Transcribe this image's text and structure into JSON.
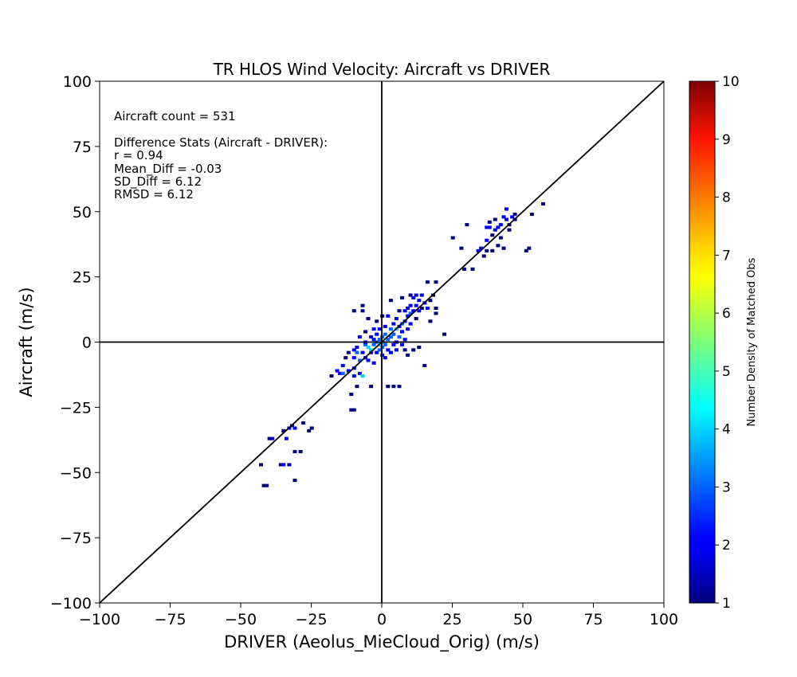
{
  "chart_data": {
    "type": "heatmap",
    "title": "TR HLOS Wind Velocity: Aircraft vs DRIVER",
    "xlabel": "DRIVER (Aeolus_MieCloud_Orig) (m/s)",
    "ylabel": "Aircraft (m/s)",
    "xlim": [
      -100,
      100
    ],
    "ylim": [
      -100,
      100
    ],
    "xticks": [
      -100,
      -75,
      -50,
      -25,
      0,
      25,
      50,
      75,
      100
    ],
    "yticks": [
      -100,
      -75,
      -50,
      -25,
      0,
      25,
      50,
      75,
      100
    ],
    "xtick_labels": [
      "−100",
      "−75",
      "−50",
      "−25",
      "0",
      "25",
      "50",
      "75",
      "100"
    ],
    "ytick_labels": [
      "−100",
      "−75",
      "−50",
      "−25",
      "0",
      "25",
      "50",
      "75",
      "100"
    ],
    "grid": false,
    "reference_lines": [
      "y = x",
      "x = 0",
      "y = 0"
    ],
    "colorbar": {
      "label": "Number Density of Matched Obs",
      "range": [
        1,
        10
      ],
      "ticks": [
        "1",
        "2",
        "3",
        "4",
        "5",
        "6",
        "7",
        "8",
        "9",
        "10"
      ],
      "colormap": "jet"
    },
    "stats_text": [
      "Aircraft count = 531",
      "",
      "Difference Stats (Aircraft - DRIVER):",
      "r = 0.94",
      "Mean_Diff = -0.03",
      "SD_Diff = 6.12",
      "RMSD = 6.12"
    ],
    "cells": [
      [
        -43,
        -47,
        1
      ],
      [
        -42,
        -55,
        1
      ],
      [
        -41,
        -55,
        1
      ],
      [
        -39,
        -37,
        2
      ],
      [
        -40,
        -37,
        1
      ],
      [
        -36,
        -47,
        1
      ],
      [
        -35,
        -47,
        2
      ],
      [
        -35,
        -34,
        1
      ],
      [
        -34,
        -37,
        2
      ],
      [
        -33,
        -47,
        1
      ],
      [
        -33,
        -33,
        2
      ],
      [
        -32,
        -32,
        1
      ],
      [
        -31,
        -53,
        1
      ],
      [
        -31,
        -42,
        1
      ],
      [
        -31,
        -33,
        2
      ],
      [
        -29,
        -42,
        1
      ],
      [
        -28,
        -31,
        1
      ],
      [
        -26,
        -34,
        1
      ],
      [
        -25,
        -33,
        1
      ],
      [
        -18,
        -13,
        1
      ],
      [
        -16,
        -11,
        2
      ],
      [
        -15,
        -12,
        2
      ],
      [
        -14,
        -9,
        2
      ],
      [
        -14,
        -12,
        3
      ],
      [
        -13,
        -6,
        1
      ],
      [
        -12,
        -11,
        2
      ],
      [
        -12,
        -4,
        1
      ],
      [
        -11,
        -20,
        1
      ],
      [
        -11,
        -26,
        1
      ],
      [
        -10,
        -26,
        1
      ],
      [
        -10,
        -13,
        2
      ],
      [
        -10,
        -10,
        2
      ],
      [
        -10,
        -6,
        2
      ],
      [
        -10,
        -3,
        2
      ],
      [
        -10,
        12,
        1
      ],
      [
        -9,
        -2,
        2
      ],
      [
        -9,
        -17,
        1
      ],
      [
        -9,
        -4,
        3
      ],
      [
        -8,
        2,
        2
      ],
      [
        -8,
        -12,
        2
      ],
      [
        -8,
        -7,
        3
      ],
      [
        -7,
        -4,
        2
      ],
      [
        -7,
        -13,
        4
      ],
      [
        -7,
        12,
        1
      ],
      [
        -7,
        14,
        1
      ],
      [
        -6,
        -1,
        3
      ],
      [
        -6,
        -6,
        2
      ],
      [
        -6,
        0,
        2
      ],
      [
        -6,
        4,
        1
      ],
      [
        -5,
        -2,
        4
      ],
      [
        -5,
        -7,
        2
      ],
      [
        -5,
        9,
        1
      ],
      [
        -4,
        -17,
        1
      ],
      [
        -4,
        -4,
        2
      ],
      [
        -4,
        -3,
        4
      ],
      [
        -4,
        2,
        2
      ],
      [
        -3,
        -1,
        3
      ],
      [
        -3,
        1,
        2
      ],
      [
        -3,
        5,
        2
      ],
      [
        -3,
        -8,
        2
      ],
      [
        -2,
        0,
        3
      ],
      [
        -2,
        -4,
        2
      ],
      [
        -2,
        3,
        2
      ],
      [
        -2,
        8,
        1
      ],
      [
        -1,
        -1,
        4
      ],
      [
        -1,
        -3,
        3
      ],
      [
        -1,
        1,
        3
      ],
      [
        -1,
        5,
        2
      ],
      [
        0,
        0,
        4
      ],
      [
        0,
        -2,
        3
      ],
      [
        0,
        2,
        3
      ],
      [
        0,
        -5,
        2
      ],
      [
        0,
        10,
        1
      ],
      [
        1,
        -1,
        3
      ],
      [
        1,
        3,
        3
      ],
      [
        1,
        6,
        2
      ],
      [
        1,
        -6,
        2
      ],
      [
        2,
        -17,
        1
      ],
      [
        2,
        1,
        3
      ],
      [
        2,
        -3,
        2
      ],
      [
        2,
        10,
        2
      ],
      [
        3,
        2,
        3
      ],
      [
        3,
        -4,
        2
      ],
      [
        3,
        5,
        3
      ],
      [
        3,
        16,
        1
      ],
      [
        4,
        -1,
        2
      ],
      [
        4,
        7,
        2
      ],
      [
        4,
        3,
        3
      ],
      [
        4,
        -17,
        1
      ],
      [
        5,
        5,
        4
      ],
      [
        5,
        0,
        2
      ],
      [
        5,
        9,
        2
      ],
      [
        5,
        -3,
        2
      ],
      [
        6,
        2,
        3
      ],
      [
        6,
        6,
        2
      ],
      [
        6,
        12,
        1
      ],
      [
        6,
        -17,
        1
      ],
      [
        7,
        7,
        3
      ],
      [
        7,
        4,
        2
      ],
      [
        7,
        -1,
        2
      ],
      [
        7,
        17,
        1
      ],
      [
        8,
        8,
        2
      ],
      [
        8,
        12,
        2
      ],
      [
        8,
        1,
        2
      ],
      [
        8,
        -3,
        1
      ],
      [
        9,
        10,
        2
      ],
      [
        9,
        13,
        2
      ],
      [
        9,
        5,
        2
      ],
      [
        9,
        -5,
        1
      ],
      [
        10,
        11,
        3
      ],
      [
        10,
        14,
        2
      ],
      [
        10,
        18,
        1
      ],
      [
        10,
        7,
        2
      ],
      [
        11,
        12,
        2
      ],
      [
        11,
        17,
        2
      ],
      [
        11,
        -3,
        1
      ],
      [
        12,
        14,
        2
      ],
      [
        12,
        18,
        2
      ],
      [
        12,
        9,
        1
      ],
      [
        13,
        16,
        2
      ],
      [
        13,
        12,
        2
      ],
      [
        13,
        -2,
        1
      ],
      [
        14,
        18,
        2
      ],
      [
        14,
        13,
        1
      ],
      [
        15,
        15,
        2
      ],
      [
        15,
        -9,
        1
      ],
      [
        16,
        13,
        2
      ],
      [
        16,
        23,
        1
      ],
      [
        17,
        16,
        1
      ],
      [
        17,
        8,
        1
      ],
      [
        18,
        18,
        1
      ],
      [
        19,
        13,
        1
      ],
      [
        19,
        23,
        1
      ],
      [
        19,
        11,
        1
      ],
      [
        22,
        3,
        1
      ],
      [
        25,
        40,
        1
      ],
      [
        28,
        36,
        1
      ],
      [
        29,
        28,
        1
      ],
      [
        30,
        45,
        1
      ],
      [
        32,
        28,
        1
      ],
      [
        34,
        35,
        2
      ],
      [
        35,
        36,
        2
      ],
      [
        36,
        33,
        1
      ],
      [
        37,
        35,
        1
      ],
      [
        37,
        39,
        2
      ],
      [
        37,
        44,
        2
      ],
      [
        38,
        44,
        2
      ],
      [
        38,
        46,
        1
      ],
      [
        39,
        41,
        1
      ],
      [
        39,
        35,
        1
      ],
      [
        40,
        47,
        1
      ],
      [
        40,
        43,
        2
      ],
      [
        41,
        44,
        2
      ],
      [
        41,
        37,
        1
      ],
      [
        42,
        45,
        2
      ],
      [
        42,
        40,
        1
      ],
      [
        43,
        48,
        2
      ],
      [
        43,
        36,
        1
      ],
      [
        44,
        47,
        2
      ],
      [
        44,
        51,
        2
      ],
      [
        45,
        45,
        1
      ],
      [
        45,
        43,
        1
      ],
      [
        46,
        48,
        2
      ],
      [
        47,
        49,
        1
      ],
      [
        47,
        47,
        1
      ],
      [
        51,
        35,
        1
      ],
      [
        52,
        36,
        1
      ],
      [
        53,
        49,
        1
      ],
      [
        57,
        53,
        1
      ]
    ]
  }
}
